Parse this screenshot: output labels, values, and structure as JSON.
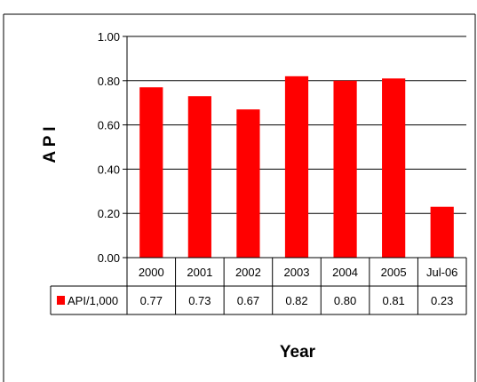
{
  "chart_data": {
    "type": "bar",
    "categories": [
      "2000",
      "2001",
      "2002",
      "2003",
      "2004",
      "2005",
      "Jul-06"
    ],
    "series": [
      {
        "name": "API/1,000",
        "values": [
          0.77,
          0.73,
          0.67,
          0.82,
          0.8,
          0.81,
          0.23
        ]
      }
    ],
    "value_labels": [
      "0.77",
      "0.73",
      "0.67",
      "0.82",
      "0.80",
      "0.81",
      "0.23"
    ],
    "yticks": [
      "0.00",
      "0.20",
      "0.40",
      "0.60",
      "0.80",
      "1.00"
    ],
    "ylim": [
      0,
      1.0
    ],
    "xlabel": "Year",
    "ylabel": "A P I",
    "grid": true,
    "legend": "data-table",
    "colors": {
      "bar": "#ff0000",
      "axis": "#000000",
      "frame": "#000000"
    }
  }
}
